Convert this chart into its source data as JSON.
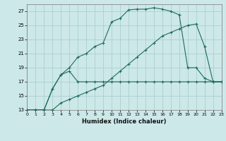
{
  "xlabel": "Humidex (Indice chaleur)",
  "background_color": "#cde8e8",
  "grid_color": "#aacfcf",
  "line_color": "#1f6b5e",
  "xlim": [
    0,
    23
  ],
  "ylim": [
    13,
    28
  ],
  "xticks": [
    0,
    1,
    2,
    3,
    4,
    5,
    6,
    7,
    8,
    9,
    10,
    11,
    12,
    13,
    14,
    15,
    16,
    17,
    18,
    19,
    20,
    21,
    22,
    23
  ],
  "yticks": [
    13,
    15,
    17,
    19,
    21,
    23,
    25,
    27
  ],
  "line1_x": [
    0,
    1,
    2,
    3,
    4,
    5,
    6,
    7,
    8,
    9,
    10,
    11,
    12,
    13,
    14,
    15,
    16,
    17,
    18,
    19,
    20,
    21,
    22,
    23
  ],
  "line1_y": [
    13,
    13,
    13,
    16,
    18,
    18.5,
    17,
    17,
    17,
    17,
    17,
    17,
    17,
    17,
    17,
    17,
    17,
    17,
    17,
    17,
    17,
    17,
    17,
    17
  ],
  "line2_x": [
    0,
    1,
    2,
    3,
    4,
    5,
    6,
    7,
    8,
    9,
    10,
    11,
    12,
    13,
    14,
    15,
    16,
    17,
    18,
    19,
    20,
    21,
    22,
    23
  ],
  "line2_y": [
    13,
    13,
    13,
    16,
    18,
    19,
    20.5,
    21,
    22,
    22.5,
    25.5,
    26,
    27.2,
    27.3,
    27.3,
    27.5,
    27.3,
    27,
    26.5,
    19.0,
    19.0,
    17.5,
    17,
    17
  ],
  "line3_x": [
    0,
    1,
    2,
    3,
    4,
    5,
    6,
    7,
    8,
    9,
    10,
    11,
    12,
    13,
    14,
    15,
    16,
    17,
    18,
    19,
    20,
    21,
    22,
    23
  ],
  "line3_y": [
    13,
    13,
    13,
    13,
    14,
    14.5,
    15,
    15.5,
    16,
    16.5,
    17.5,
    18.5,
    19.5,
    20.5,
    21.5,
    22.5,
    23.5,
    24,
    24.5,
    25,
    25.2,
    22,
    17,
    17
  ]
}
